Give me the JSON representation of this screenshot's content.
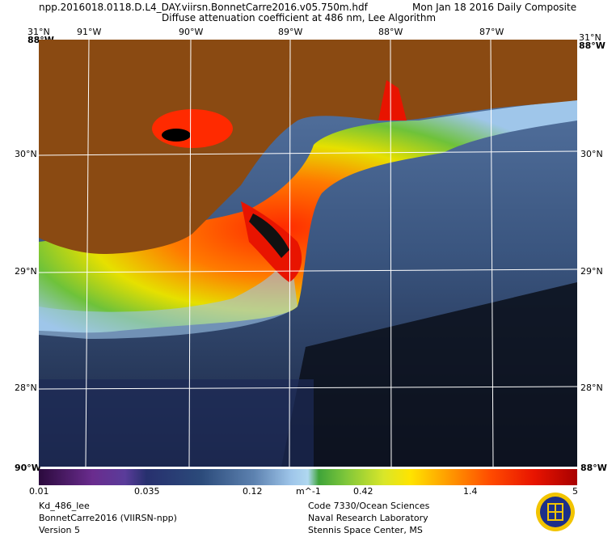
{
  "header": {
    "file": "npp.2016018.0118.D.L4_DAY.viirsn.BonnetCarre2016.v05.750m.hdf",
    "date": "Mon Jan 18 2016 Daily Composite",
    "product": "Diffuse attenuation coefficient at 486 nm, Lee Algorithm"
  },
  "lon_labels": [
    "91°W",
    "90°W",
    "89°W",
    "88°W",
    "87°W"
  ],
  "lat_labels": [
    "30°N",
    "29°N",
    "28°N"
  ],
  "corner_labels": {
    "top_left": "31°N",
    "top_left_lon": "88°W",
    "top_right": "31°N",
    "top_right_lon": "88°W",
    "bottom_left": "90°W",
    "bottom_right": "88°W"
  },
  "colorbar": {
    "ticks": [
      "0.01",
      "0.035",
      "0.12",
      "m^-1",
      "0.42",
      "1.4",
      "5"
    ]
  },
  "footer": {
    "left1": "Kd_486_lee",
    "left2": "BonnetCarre2016 (VIIRSN-npp)",
    "left3": "Version 5",
    "mid1": "Code 7330/Ocean Sciences",
    "mid2": "Naval Research Laboratory",
    "mid3": "Stennis Space Center, MS"
  },
  "colors": {
    "land": "#8a4a12",
    "ocean": "#3c5a86",
    "deep": "#0b0f1a",
    "grid": "#ffffff"
  }
}
